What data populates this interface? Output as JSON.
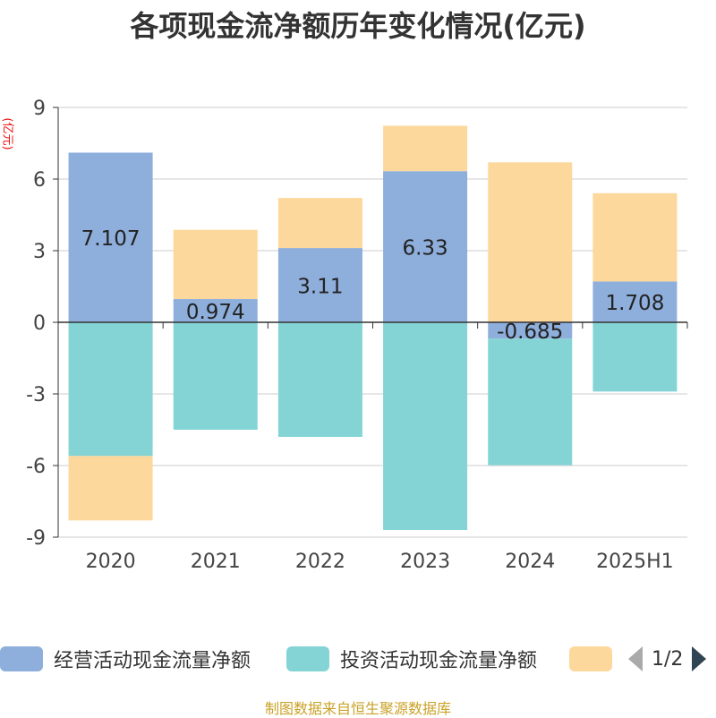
{
  "chart_data": {
    "type": "bar",
    "stacked": true,
    "title": "各项现金流净额历年变化情况(亿元)",
    "ylabel": "(亿元)",
    "xlabel": "",
    "categories": [
      "2020",
      "2021",
      "2022",
      "2023",
      "2024",
      "2025H1"
    ],
    "ylim": [
      -9,
      9
    ],
    "yticks": [
      9,
      6,
      3,
      0,
      -3,
      -6,
      -9
    ],
    "grid": true,
    "legend_position": "bottom",
    "series": [
      {
        "name": "经营活动现金流量净额",
        "color": "#8eaedb",
        "values": [
          7.107,
          0.974,
          3.11,
          6.33,
          -0.685,
          1.708
        ],
        "labels": [
          "7.107",
          "0.974",
          "3.11",
          "6.33",
          "-0.685",
          "1.708"
        ]
      },
      {
        "name": "投资活动现金流量净额",
        "color": "#84d4d6",
        "values": [
          -5.6,
          -4.5,
          -4.8,
          -8.7,
          -5.3,
          -2.9
        ]
      },
      {
        "color": "#fdd89c",
        "values": [
          -2.7,
          2.9,
          2.1,
          1.9,
          6.7,
          3.7
        ]
      }
    ]
  },
  "legend": {
    "page": "1/2"
  },
  "source": "制图数据来自恒生聚源数据库"
}
